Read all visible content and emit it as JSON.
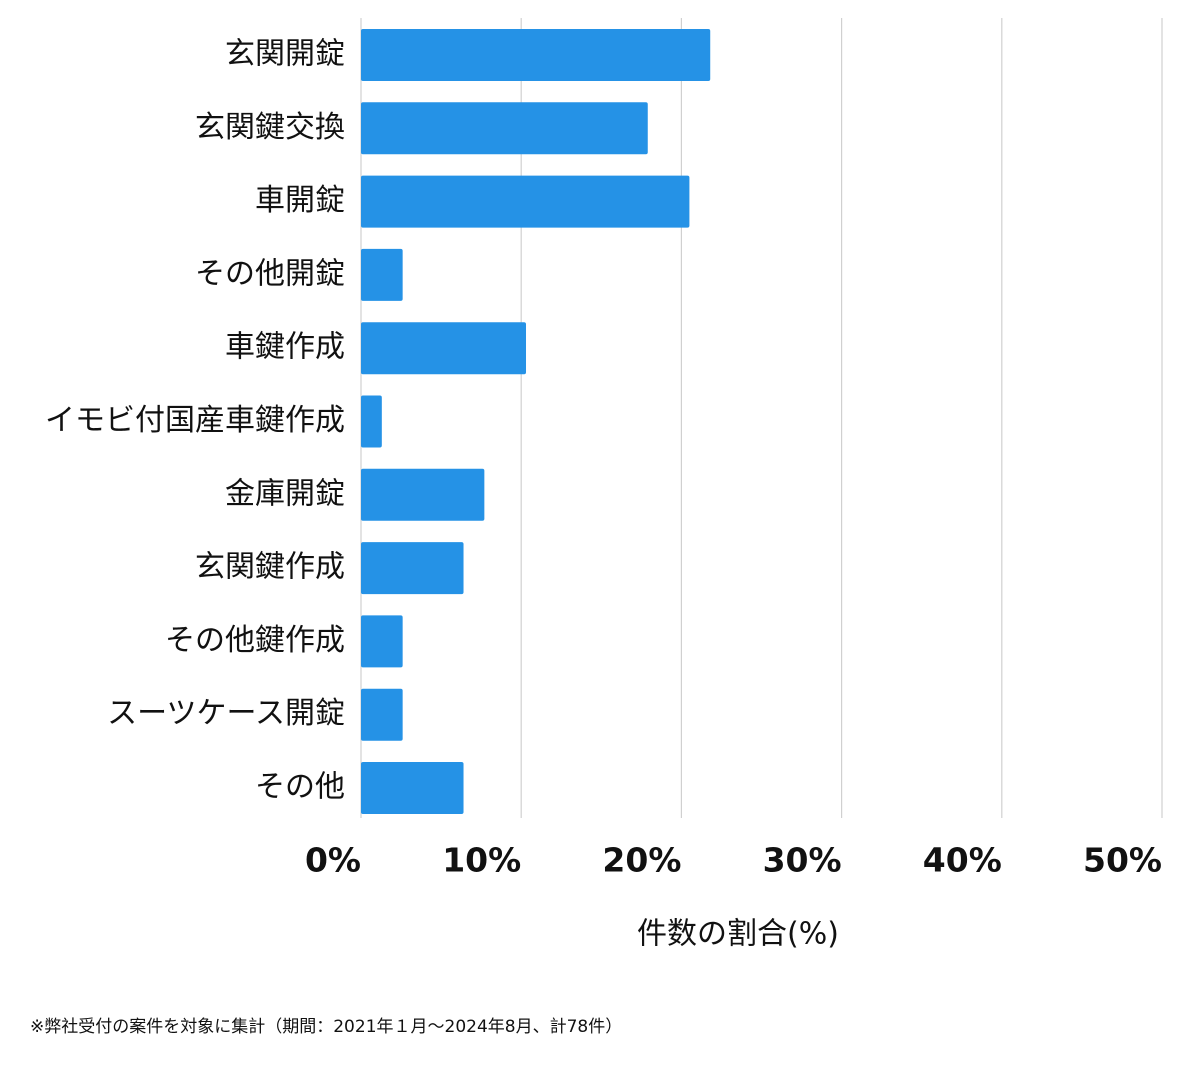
{
  "chart_data": {
    "type": "bar",
    "orientation": "horizontal",
    "categories": [
      "玄関開錠",
      "玄関鍵交換",
      "車開錠",
      "その他開錠",
      "車鍵作成",
      "イモビ付国産車鍵作成",
      "金庫開錠",
      "玄関鍵作成",
      "その他鍵作成",
      "スーツケース開錠",
      "その他"
    ],
    "values": [
      21.8,
      17.9,
      20.5,
      2.6,
      10.3,
      1.3,
      7.7,
      6.4,
      2.6,
      2.6,
      6.4
    ],
    "color": "#2592e6",
    "xlim": [
      0,
      50
    ],
    "xticks": [
      {
        "value": 0,
        "label": "0%"
      },
      {
        "value": 10,
        "label": "10%"
      },
      {
        "value": 20,
        "label": "20%"
      },
      {
        "value": 30,
        "label": "30%"
      },
      {
        "value": 40,
        "label": "40%"
      },
      {
        "value": 50,
        "label": "50%"
      }
    ],
    "xlabel": "件数の割合(%)",
    "grid": true,
    "note": "※弊社受付の案件を対象に集計（期間：2021年１月～2024年8月、計78件）"
  }
}
